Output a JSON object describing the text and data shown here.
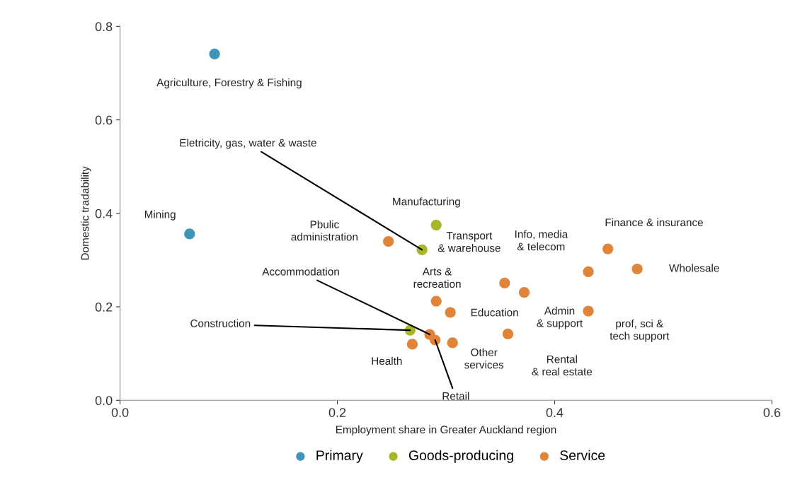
{
  "chart_data": {
    "type": "scatter",
    "xlabel": "Employment share in Greater Auckland region",
    "ylabel": "Domestic tradability",
    "series": [
      {
        "name": "Primary",
        "color": "#3e95b5",
        "x": [
          0.087,
          0.064
        ],
        "values": [
          0.741,
          0.356
        ]
      },
      {
        "name": "Goods-producing",
        "color": "#a7b62a",
        "x": [
          0.291,
          0.278,
          0.267
        ],
        "values": [
          0.375,
          0.322,
          0.15
        ]
      },
      {
        "name": "Service",
        "color": "#e0843a",
        "x": [
          0.247,
          0.449,
          0.476,
          0.431,
          0.354,
          0.372,
          0.431,
          0.291,
          0.304,
          0.357,
          0.285,
          0.29,
          0.306,
          0.269
        ],
        "values": [
          0.34,
          0.324,
          0.281,
          0.275,
          0.251,
          0.231,
          0.191,
          0.212,
          0.188,
          0.142,
          0.141,
          0.129,
          0.123,
          0.12
        ]
      }
    ],
    "annotations": [
      {
        "text": "Agriculture, Forestry & Fishing",
        "x": 0.087,
        "y": 0.741
      },
      {
        "text": "Mining",
        "x": 0.064,
        "y": 0.356
      },
      {
        "text": "Manufacturing",
        "x": 0.291,
        "y": 0.375
      },
      {
        "text": "Eletricity, gas, water & waste",
        "x": 0.278,
        "y": 0.322
      },
      {
        "text": "Construction",
        "x": 0.267,
        "y": 0.15
      },
      {
        "text": "Pbulic\nadministration",
        "x": 0.247,
        "y": 0.34
      },
      {
        "text": "Finance & insurance",
        "x": 0.449,
        "y": 0.324
      },
      {
        "text": "Wholesale",
        "x": 0.476,
        "y": 0.281
      },
      {
        "text": "Info, media\n& telecom",
        "x": 0.431,
        "y": 0.275
      },
      {
        "text": "Transport\n& warehouse",
        "x": 0.354,
        "y": 0.251
      },
      {
        "text": "Admin\n& support",
        "x": 0.372,
        "y": 0.231
      },
      {
        "text": "prof, sci &\ntech support",
        "x": 0.431,
        "y": 0.191
      },
      {
        "text": "Arts &\nrecreation",
        "x": 0.291,
        "y": 0.212
      },
      {
        "text": "Education",
        "x": 0.304,
        "y": 0.188
      },
      {
        "text": "Rental\n& real estate",
        "x": 0.357,
        "y": 0.142
      },
      {
        "text": "Accommodation",
        "x": 0.285,
        "y": 0.141
      },
      {
        "text": "Retail",
        "x": 0.29,
        "y": 0.129
      },
      {
        "text": "Other\nservices",
        "x": 0.306,
        "y": 0.123
      },
      {
        "text": "Health",
        "x": 0.269,
        "y": 0.12
      }
    ],
    "xlim": [
      0,
      0.6
    ],
    "ylim": [
      0,
      0.8
    ],
    "xticks": [
      {
        "value": 0,
        "label": "0.0"
      },
      {
        "value": 0.2,
        "label": "0.2"
      },
      {
        "value": 0.4,
        "label": "0.4"
      },
      {
        "value": 0.6,
        "label": "0.6"
      }
    ],
    "yticks": [
      {
        "value": 0,
        "label": "0.0"
      },
      {
        "value": 0.2,
        "label": "0.2"
      },
      {
        "value": 0.4,
        "label": "0.4"
      },
      {
        "value": 0.6,
        "label": "0.6"
      },
      {
        "value": 0.8,
        "label": "0.8"
      }
    ],
    "grid": false,
    "legend": "bottom",
    "marker": "circle"
  }
}
